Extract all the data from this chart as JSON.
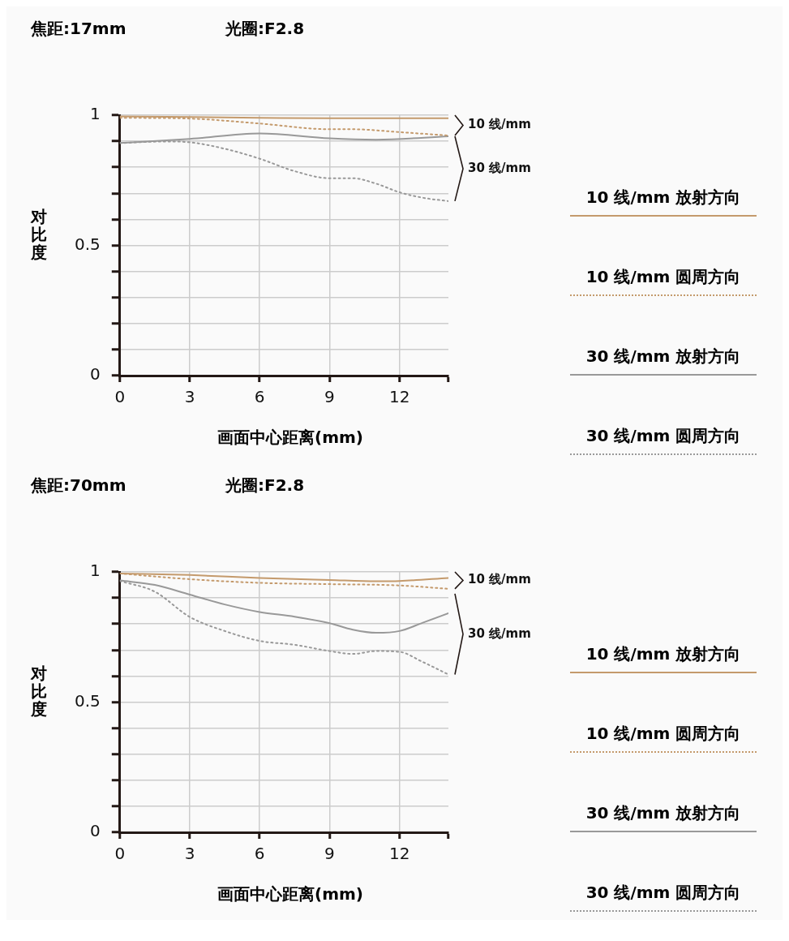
{
  "chart_data": [
    {
      "type": "line",
      "title": "焦距:17mm",
      "subtitle": "光圈:F2.8",
      "xlabel": "画面中心距离(mm)",
      "ylabel": "对比度",
      "xlim": [
        0,
        14.1
      ],
      "xticks": [
        0,
        3,
        6,
        9,
        12,
        {
          "value": 14.1,
          "label": null
        }
      ],
      "ylim": [
        0,
        1
      ],
      "yticks": [
        0,
        {
          "value": 0.1,
          "label": null
        },
        {
          "value": 0.2,
          "label": null
        },
        {
          "value": 0.3,
          "label": null
        },
        {
          "value": 0.4,
          "label": null
        },
        0.5,
        {
          "value": 0.6,
          "label": null
        },
        {
          "value": 0.7,
          "label": null
        },
        {
          "value": 0.8,
          "label": null
        },
        {
          "value": 0.9,
          "label": null
        },
        1
      ],
      "grid": true,
      "legend": "right",
      "marker": "none",
      "annotations": [
        "10 线/mm",
        "30 线/mm"
      ],
      "series": [
        {
          "name": "10 线/mm 放射方向",
          "color": "#c49a6c",
          "line_style": "solid",
          "x": [
            0,
            3,
            6,
            9,
            12,
            14.1
          ],
          "values": [
            0.995,
            0.993,
            0.99,
            0.988,
            0.988,
            0.988
          ]
        },
        {
          "name": "10 线/mm 圆周方向",
          "color": "#c49a6c",
          "line_style": "dotted",
          "x": [
            0,
            3,
            6,
            9,
            10,
            12,
            14.1
          ],
          "values": [
            0.99,
            0.987,
            0.968,
            0.946,
            0.946,
            0.935,
            0.922
          ]
        },
        {
          "name": "30 线/mm 放射方向",
          "color": "#999999",
          "line_style": "solid",
          "x": [
            0,
            3,
            6,
            9,
            11,
            14.1
          ],
          "values": [
            0.893,
            0.909,
            0.93,
            0.911,
            0.906,
            0.919
          ]
        },
        {
          "name": "30 线/mm 圆周方向",
          "color": "#999999",
          "line_style": "dotted",
          "x": [
            0,
            2,
            3,
            4.5,
            6,
            7.5,
            9,
            10,
            11,
            12,
            13,
            14.1
          ],
          "values": [
            0.893,
            0.899,
            0.896,
            0.871,
            0.833,
            0.785,
            0.758,
            0.758,
            0.737,
            0.704,
            0.683,
            0.67
          ]
        }
      ]
    },
    {
      "type": "line",
      "title": "焦距:70mm",
      "subtitle": "光圈:F2.8",
      "xlabel": "画面中心距离(mm)",
      "ylabel": "对比度",
      "xlim": [
        0,
        14.1
      ],
      "xticks": [
        0,
        3,
        6,
        9,
        12,
        {
          "value": 14.1,
          "label": null
        }
      ],
      "ylim": [
        0,
        1
      ],
      "yticks": [
        0,
        {
          "value": 0.1,
          "label": null
        },
        {
          "value": 0.2,
          "label": null
        },
        {
          "value": 0.3,
          "label": null
        },
        {
          "value": 0.4,
          "label": null
        },
        0.5,
        {
          "value": 0.6,
          "label": null
        },
        {
          "value": 0.7,
          "label": null
        },
        {
          "value": 0.8,
          "label": null
        },
        {
          "value": 0.9,
          "label": null
        },
        1
      ],
      "grid": true,
      "legend": "right",
      "marker": "none",
      "annotations": [
        "10 线/mm",
        "30 线/mm"
      ],
      "series": [
        {
          "name": "10 线/mm 放射方向",
          "color": "#c49a6c",
          "line_style": "solid",
          "x": [
            0,
            3,
            6,
            9,
            11,
            12,
            14.1
          ],
          "values": [
            0.994,
            0.988,
            0.977,
            0.969,
            0.964,
            0.965,
            0.977
          ]
        },
        {
          "name": "10 线/mm 圆周方向",
          "color": "#c49a6c",
          "line_style": "dotted",
          "x": [
            0,
            3,
            6,
            9,
            12,
            14.1
          ],
          "values": [
            0.994,
            0.972,
            0.958,
            0.953,
            0.948,
            0.935
          ]
        },
        {
          "name": "30 线/mm 放射方向",
          "color": "#999999",
          "line_style": "solid",
          "x": [
            0,
            1.5,
            3,
            4.5,
            6,
            7.5,
            9,
            10,
            11,
            12,
            13,
            14.1
          ],
          "values": [
            0.967,
            0.95,
            0.913,
            0.875,
            0.846,
            0.828,
            0.803,
            0.778,
            0.766,
            0.773,
            0.805,
            0.841
          ]
        },
        {
          "name": "30 线/mm 圆周方向",
          "color": "#999999",
          "line_style": "dotted",
          "x": [
            0,
            1.5,
            3,
            4.5,
            6,
            7.5,
            9,
            10,
            11,
            12,
            13,
            14.1
          ],
          "values": [
            0.965,
            0.924,
            0.827,
            0.773,
            0.735,
            0.72,
            0.696,
            0.685,
            0.696,
            0.693,
            0.654,
            0.606
          ]
        }
      ]
    }
  ]
}
